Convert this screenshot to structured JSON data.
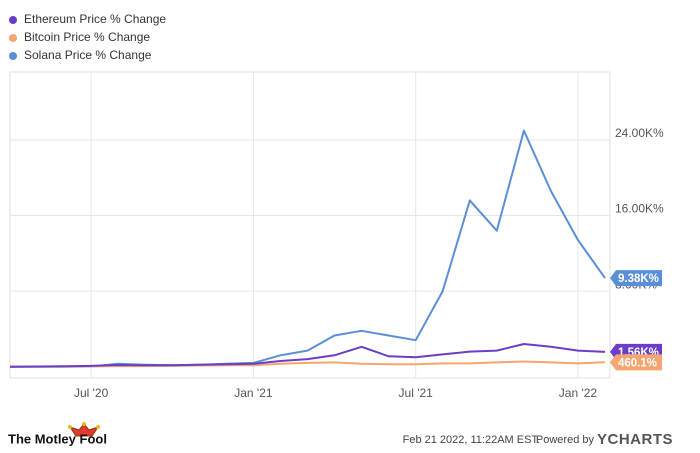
{
  "chart_data": {
    "type": "line",
    "x": [
      "2020-04",
      "2020-05",
      "2020-06",
      "2020-07",
      "2020-08",
      "2020-09",
      "2020-10",
      "2020-11",
      "2020-12",
      "2021-01",
      "2021-02",
      "2021-03",
      "2021-04",
      "2021-05",
      "2021-06",
      "2021-07",
      "2021-08",
      "2021-09",
      "2021-10",
      "2021-11",
      "2021-12",
      "2022-01",
      "2022-02"
    ],
    "xlim": [
      "2020-04",
      "2022-02"
    ],
    "xticks": [
      {
        "value": "2020-07",
        "label": "Jul '20"
      },
      {
        "value": "2021-01",
        "label": "Jan '21"
      },
      {
        "value": "2021-07",
        "label": "Jul '21"
      },
      {
        "value": "2022-01",
        "label": "Jan '22"
      }
    ],
    "ylim": [
      -1200,
      31200
    ],
    "yticks": [
      {
        "value": 8000,
        "label": "8.00K%"
      },
      {
        "value": 16000,
        "label": "16.00K%"
      },
      {
        "value": 24000,
        "label": "24.00K%"
      }
    ],
    "grid": true,
    "legend": "top-left",
    "series": [
      {
        "name": "Ethereum Price % Change",
        "color": "#6a3ec8",
        "end_label": "1.56K%",
        "values": [
          0,
          20,
          50,
          80,
          180,
          150,
          150,
          200,
          250,
          300,
          600,
          800,
          1200,
          2100,
          1100,
          1000,
          1300,
          1600,
          1700,
          2400,
          2100,
          1700,
          1560
        ]
      },
      {
        "name": "Bitcoin Price % Change",
        "color": "#f5a56e",
        "end_label": "460.1%",
        "values": [
          0,
          10,
          20,
          30,
          60,
          60,
          80,
          120,
          140,
          150,
          300,
          400,
          450,
          300,
          250,
          250,
          350,
          350,
          450,
          550,
          450,
          350,
          460.1
        ]
      },
      {
        "name": "Solana Price % Change",
        "color": "#5a8fd8",
        "end_label": "9.38K%",
        "values": [
          0,
          0,
          0,
          20,
          300,
          200,
          150,
          200,
          300,
          400,
          1200,
          1700,
          3300,
          3800,
          3300,
          2800,
          8000,
          17600,
          14400,
          25000,
          18600,
          13400,
          9380
        ]
      }
    ],
    "footer": {
      "brand_left": "The Motley Fool",
      "timestamp": "Feb 21 2022, 11:22AM EST.",
      "powered_by": "Powered by",
      "brand_right": "YCHARTS"
    }
  }
}
